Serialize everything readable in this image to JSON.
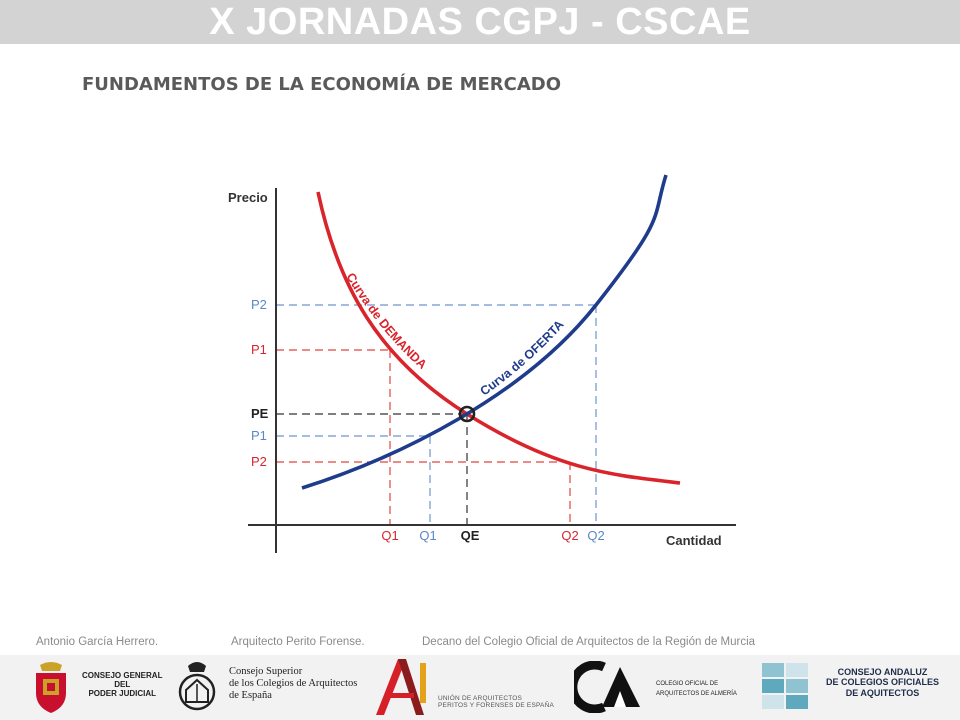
{
  "header": {
    "title": "X JORNADAS CGPJ - CSCAE"
  },
  "slide": {
    "title": "FUNDAMENTOS DE LA ECONOMÍA DE MERCADO"
  },
  "diagram": {
    "y_axis_label": "Precio",
    "x_axis_label": "Cantidad",
    "demand_curve_label": "Curva de DEMANDA",
    "supply_curve_label": "Curva de OFERTA",
    "price_labels": {
      "p2_top": "P2",
      "p1_top": "P1",
      "pe": "PE",
      "p1_bottom": "P1",
      "p2_bottom": "P2"
    },
    "quantity_labels": {
      "q1_red": "Q1",
      "q1_blue": "Q1",
      "qe": "QE",
      "q2_red": "Q2",
      "q2_blue": "Q2"
    },
    "colors": {
      "demand": "#d9242b",
      "supply": "#1f3c8c",
      "demand_guide": "#e0463f",
      "supply_guide": "#6f95cf",
      "equilibrium": "#333333"
    }
  },
  "footer": {
    "author": "Antonio García Herrero.",
    "role": "Arquitecto Perito Forense.",
    "position": "Decano del Colegio Oficial de Arquitectos de la Región de Murcia"
  },
  "logos": {
    "cgpj": {
      "line1": "CONSEJO GENERAL",
      "line2": "DEL",
      "line3": "PODER JUDICIAL",
      "icon": "coat-of-arms-icon"
    },
    "cscae": {
      "line1": "Consejo Superior",
      "line2": "de los Colegios de Arquitectos",
      "line3": "de España",
      "icon": "crest-icon"
    },
    "uaa": {
      "line1": "UNIÓN DE ARQUITECTOS",
      "line2": "PERITOS Y FORENSES DE ESPAÑA",
      "icon": "a-letter-icon"
    },
    "coa_almeria": {
      "line1": "COLEGIO OFICIAL DE",
      "line2": "ARQUITECTOS DE ALMERÍA",
      "icon": "ca-logo-icon"
    },
    "cacoa": {
      "line1": "CONSEJO ANDALUZ",
      "line2": "DE COLEGIOS OFICIALES",
      "line3": "DE AQUITECTOS",
      "icon": "grid-squares-icon"
    }
  }
}
